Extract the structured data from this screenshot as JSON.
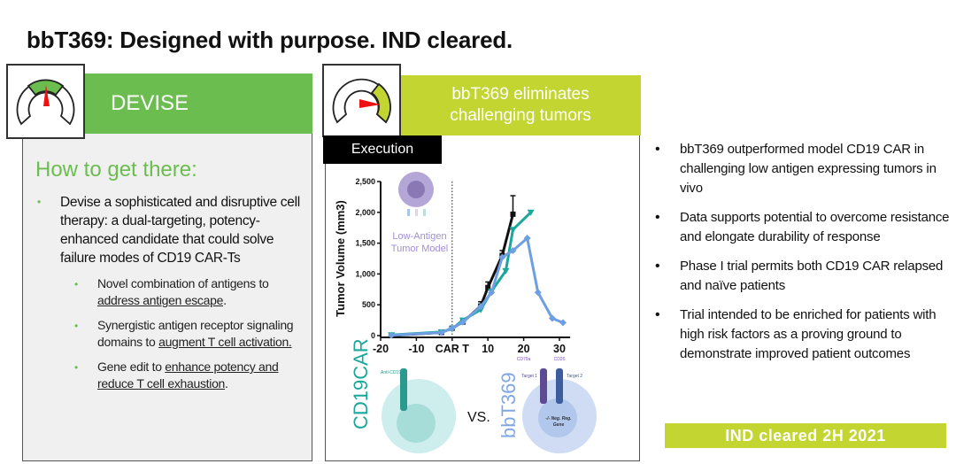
{
  "title": "bbT369: Designed with purpose. IND cleared.",
  "left": {
    "banner": "DEVISE",
    "gauge_icon": "speedometer-gauge-icon",
    "heading": "How to get there:",
    "bullet": "Devise a sophisticated and disruptive cell therapy: a dual-targeting, potency-enhanced candidate that could solve failure modes of CD19 CAR-Ts",
    "sub_bullets": [
      {
        "pre": "Novel combination of antigens to ",
        "link": "address antigen escape",
        "post": "."
      },
      {
        "pre": "Synergistic antigen receptor signaling domains to ",
        "link": "augment T cell activation.",
        "post": ""
      },
      {
        "pre": "Gene edit to ",
        "link": "enhance potency and reduce T cell exhaustion",
        "post": "."
      }
    ]
  },
  "middle": {
    "banner_line1": "bbT369 eliminates",
    "banner_line2": "challenging tumors",
    "tag": "Execution",
    "model_label_1": "Low-Antigen",
    "model_label_2": "Tumor Model",
    "cell_left_label": "CD19CAR",
    "cell_left_receptor": "Anti-CD19",
    "vs": "VS.",
    "cell_right_label": "bbT369",
    "target1": "Target 1",
    "target2": "Target 2",
    "gene_label_1": "-/- Neg. Reg.",
    "gene_label_2": "Gene"
  },
  "chart_data": {
    "type": "line",
    "ylabel": "Tumor Volume (mm3)",
    "xlim": [
      -20,
      33
    ],
    "ylim": [
      0,
      2500
    ],
    "xticks": [
      -20,
      -10,
      0,
      10,
      20,
      30
    ],
    "xtick_labels": [
      "-20",
      "-10",
      "CAR T",
      "10",
      "20",
      "30"
    ],
    "xtick_sublabels": {
      "20": "CD79a",
      "30": "CD20"
    },
    "yticks": [
      0,
      500,
      1000,
      1500,
      2000,
      2500
    ],
    "ytick_labels": [
      "0",
      "500",
      "1,000",
      "1,500",
      "2,000",
      "2,500"
    ],
    "vline_at": 0,
    "series": [
      {
        "color": "#111111",
        "marker": "square",
        "x": [
          -17,
          -3,
          0,
          3,
          8,
          10,
          14,
          17
        ],
        "y": [
          0,
          50,
          120,
          220,
          480,
          780,
          1300,
          1970
        ],
        "error_top": [
          null,
          null,
          null,
          null,
          550,
          870,
          1380,
          2270
        ]
      },
      {
        "color": "#1aa89a",
        "marker": "triangle",
        "x": [
          -17,
          -3,
          0,
          3,
          8,
          11,
          15,
          17,
          22
        ],
        "y": [
          10,
          60,
          110,
          250,
          420,
          720,
          1050,
          1720,
          2000
        ]
      },
      {
        "color": "#6f9fe3",
        "marker": "diamond",
        "x": [
          -17,
          -3,
          0,
          3,
          8,
          11,
          14,
          17,
          21,
          24,
          28,
          31
        ],
        "y": [
          5,
          50,
          120,
          220,
          470,
          700,
          1270,
          1380,
          1580,
          700,
          280,
          210
        ]
      }
    ]
  },
  "right": {
    "bullets": [
      "bbT369 outperformed model CD19 CAR in challenging low antigen expressing tumors in vivo",
      "Data supports potential to overcome resistance and elongate durability of response",
      "Phase I trial permits both CD19 CAR relapsed and naïve patients",
      "Trial intended to be enriched for patients with high risk factors as a proving ground to demonstrate improved patient outcomes"
    ],
    "badge": "IND cleared 2H 2021"
  },
  "colors": {
    "devise_green": "#6cbd4f",
    "lime": "#c2d530",
    "gauge_needle": "#ee1111"
  }
}
